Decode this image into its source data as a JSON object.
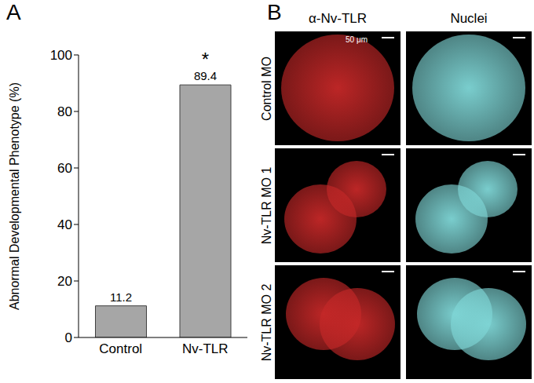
{
  "chart_data": {
    "type": "bar",
    "categories": [
      "Control",
      "Nv-TLR"
    ],
    "values": [
      11.2,
      89.4
    ],
    "color": "#a6a6a6",
    "ylabel": "Abnormal Developmental Phenotype (%)",
    "ylim": [
      0,
      100
    ],
    "yticks": [
      0,
      20,
      40,
      60,
      80,
      100
    ],
    "grid": false,
    "data_labels": true,
    "annotations": [
      {
        "category": "Nv-TLR",
        "text": "*"
      }
    ]
  },
  "panels": [
    "A",
    "B"
  ],
  "micrographs": {
    "columns": [
      "α-Nv-TLR",
      "Nuclei"
    ],
    "rows": [
      "Control MO",
      "Nv-TLR MO 1",
      "Nv-TLR MO 2"
    ],
    "scale_bar": "50 μm"
  }
}
